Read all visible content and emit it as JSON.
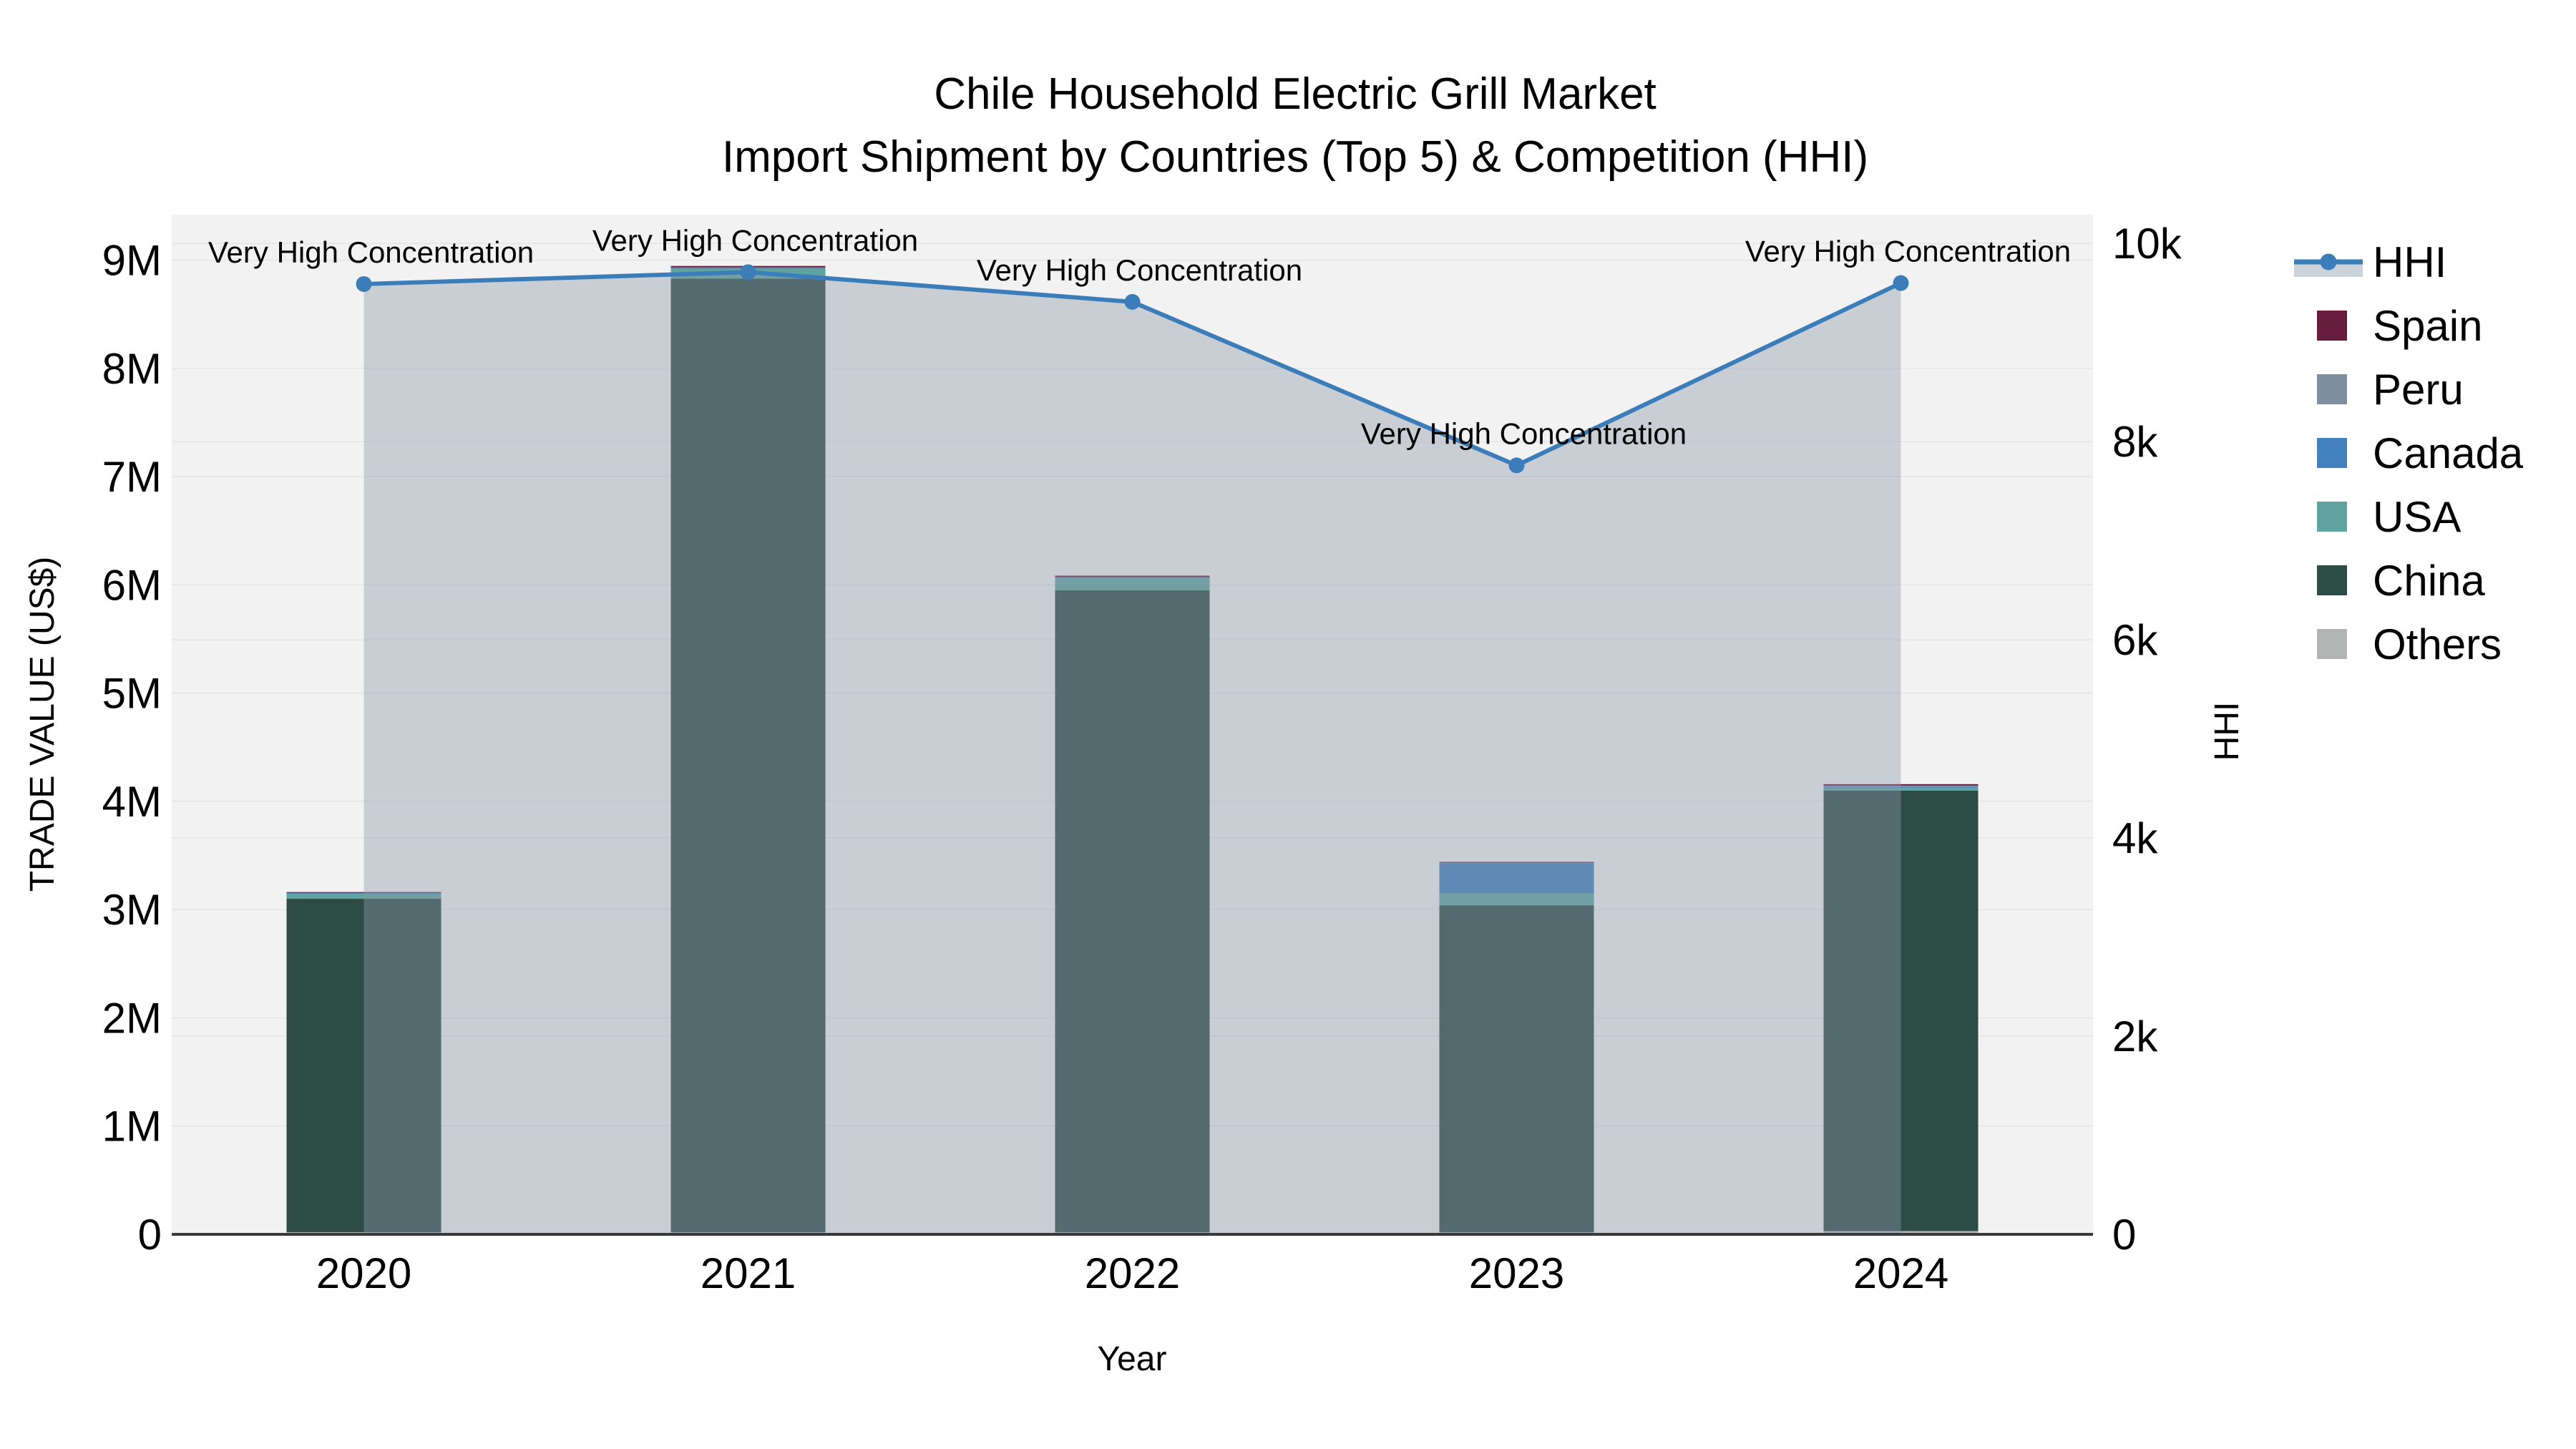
{
  "title": {
    "line1": "Chile Household Electric Grill Market",
    "line2": "Import Shipment by Countries (Top 5) & Competition (HHI)"
  },
  "chart_data": {
    "type": "combo",
    "bar_mode": "stacked",
    "categories": [
      "2020",
      "2021",
      "2022",
      "2023",
      "2024"
    ],
    "x_axis_title": "Year",
    "y_left": {
      "title": "TRADE VALUE (US$)",
      "tick_labels": [
        "0",
        "1M",
        "2M",
        "3M",
        "4M",
        "5M",
        "6M",
        "7M",
        "8M",
        "9M"
      ],
      "tick_values": [
        0,
        1000000,
        2000000,
        3000000,
        4000000,
        5000000,
        6000000,
        7000000,
        8000000,
        9000000
      ],
      "range": [
        0,
        9420000
      ],
      "grid": true
    },
    "y_right": {
      "title": "HHI",
      "tick_labels": [
        "0",
        "2k",
        "4k",
        "6k",
        "8k",
        "10k"
      ],
      "tick_values": [
        0,
        2000,
        4000,
        6000,
        8000,
        10000
      ],
      "range": [
        0,
        10290
      ],
      "grid": true
    },
    "bar_series": [
      {
        "name": "Others",
        "color": "#b3b5b4",
        "values": [
          20000,
          20000,
          20000,
          20000,
          30000
        ]
      },
      {
        "name": "China",
        "color": "#2d4c46",
        "values": [
          3080000,
          8810000,
          5930000,
          3020000,
          4070000
        ]
      },
      {
        "name": "USA",
        "color": "#5fa4a0",
        "values": [
          46000,
          90000,
          110000,
          110000,
          26000
        ]
      },
      {
        "name": "Canada",
        "color": "#4280be",
        "values": [
          8000,
          8000,
          8000,
          280000,
          8000
        ]
      },
      {
        "name": "Peru",
        "color": "#7e8da0",
        "values": [
          4000,
          5000,
          4000,
          5000,
          12000
        ]
      },
      {
        "name": "Spain",
        "color": "#671d3e",
        "values": [
          4000,
          13000,
          13000,
          6000,
          13000
        ]
      }
    ],
    "line_series": {
      "name": "HHI",
      "color": "#3b7db8",
      "fill_color": "rgba(140,152,170,0.40)",
      "values": [
        9590,
        9710,
        9410,
        7760,
        9600
      ]
    },
    "annotations": [
      {
        "category": "2020",
        "text": "Very High Concentration"
      },
      {
        "category": "2021",
        "text": "Very High Concentration"
      },
      {
        "category": "2022",
        "text": "Very High Concentration"
      },
      {
        "category": "2023",
        "text": "Very High Concentration"
      },
      {
        "category": "2024",
        "text": "Very High Concentration"
      }
    ]
  },
  "legend": {
    "items": [
      {
        "label": "HHI",
        "type": "line",
        "color": "#3b7db8"
      },
      {
        "label": "Spain",
        "type": "swatch",
        "color": "#671d3e"
      },
      {
        "label": "Peru",
        "type": "swatch",
        "color": "#7e8da0"
      },
      {
        "label": "Canada",
        "type": "swatch",
        "color": "#4280be"
      },
      {
        "label": "USA",
        "type": "swatch",
        "color": "#5fa4a0"
      },
      {
        "label": "China",
        "type": "swatch",
        "color": "#2d4c46"
      },
      {
        "label": "Others",
        "type": "swatch",
        "color": "#b3b5b4"
      }
    ]
  },
  "style": {
    "plot_bg": "#f2f2f2",
    "grid_color": "#e6e8e8",
    "axis_line_color": "#3a3a3a",
    "legend_band_color": "#ccd2da"
  }
}
